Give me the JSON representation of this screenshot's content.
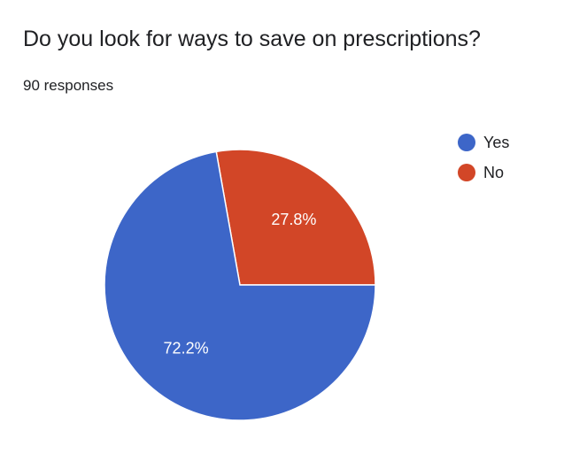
{
  "question": {
    "title": "Do you look for ways to save on prescriptions?",
    "responses": "90 responses"
  },
  "colors": {
    "yes": "#3d66c8",
    "no": "#d24627"
  },
  "chart_data": {
    "type": "pie",
    "categories": [
      "Yes",
      "No"
    ],
    "values": [
      72.2,
      27.8
    ],
    "labels": [
      "72.2%",
      "27.8%"
    ],
    "colors": [
      "#3d66c8",
      "#d24627"
    ],
    "legend_position": "right",
    "title": "",
    "legend": [
      "Yes",
      "No"
    ]
  }
}
